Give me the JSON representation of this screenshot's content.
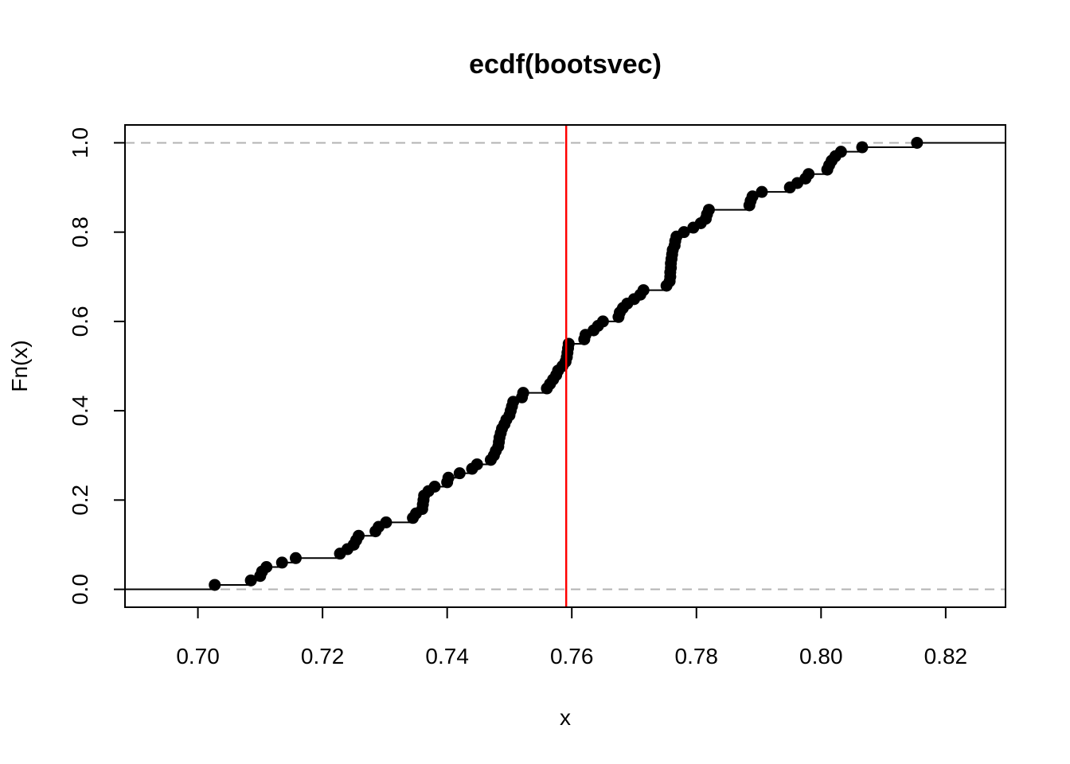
{
  "chart_data": {
    "type": "scatter",
    "subtype": "ecdf-step",
    "title": "ecdf(bootsvec)",
    "xlabel": "x",
    "ylabel": "Fn(x)",
    "xlim": [
      0.6883,
      0.8296
    ],
    "ylim": [
      -0.04,
      1.04
    ],
    "x_ticks": [
      "0.70",
      "0.72",
      "0.74",
      "0.76",
      "0.78",
      "0.80",
      "0.82"
    ],
    "x_tick_values": [
      0.7,
      0.72,
      0.74,
      0.76,
      0.78,
      0.8,
      0.82
    ],
    "y_ticks": [
      "0.0",
      "0.2",
      "0.4",
      "0.6",
      "0.8",
      "1.0"
    ],
    "y_tick_values": [
      0.0,
      0.2,
      0.4,
      0.6,
      0.8,
      1.0
    ],
    "reference_lines": {
      "horizontal": [
        0,
        1
      ],
      "horizontal_color": "#b3b3b3",
      "vertical": 0.7591,
      "vertical_color": "#ff0000"
    },
    "grid": false,
    "point_color": "#000000",
    "n": 100,
    "sorted_values": [
      0.7027,
      0.7085,
      0.71,
      0.7103,
      0.711,
      0.7135,
      0.7157,
      0.7228,
      0.724,
      0.725,
      0.7254,
      0.7258,
      0.7285,
      0.729,
      0.7302,
      0.7345,
      0.735,
      0.736,
      0.7361,
      0.7362,
      0.7363,
      0.737,
      0.738,
      0.74,
      0.7402,
      0.742,
      0.744,
      0.7448,
      0.747,
      0.7475,
      0.7478,
      0.7482,
      0.7483,
      0.7484,
      0.7486,
      0.7488,
      0.7492,
      0.7495,
      0.75,
      0.7502,
      0.7504,
      0.7506,
      0.752,
      0.7522,
      0.756,
      0.7565,
      0.757,
      0.7575,
      0.7578,
      0.7585,
      0.759,
      0.7592,
      0.7593,
      0.7594,
      0.7595,
      0.762,
      0.7622,
      0.7635,
      0.7642,
      0.765,
      0.7675,
      0.7677,
      0.7682,
      0.7689,
      0.77,
      0.771,
      0.7715,
      0.7752,
      0.7757,
      0.7758,
      0.7758,
      0.7759,
      0.7759,
      0.776,
      0.7761,
      0.7762,
      0.7765,
      0.7766,
      0.7768,
      0.778,
      0.7795,
      0.7807,
      0.7815,
      0.7817,
      0.782,
      0.7885,
      0.7887,
      0.789,
      0.7905,
      0.795,
      0.7962,
      0.7975,
      0.798,
      0.801,
      0.8013,
      0.8017,
      0.8023,
      0.8032,
      0.8066,
      0.8154
    ]
  }
}
